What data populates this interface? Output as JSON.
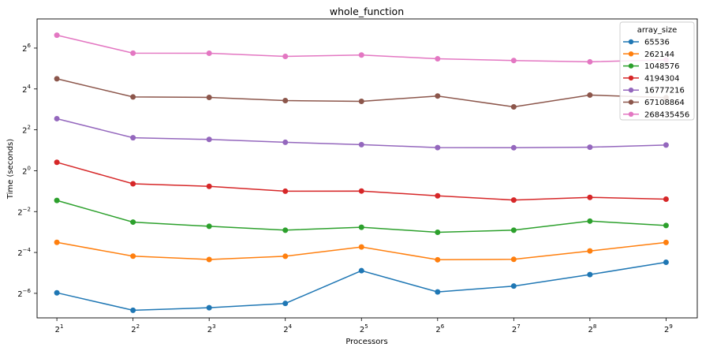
{
  "chart_data": {
    "type": "line",
    "title": "whole_function",
    "xlabel": "Processors",
    "ylabel": "Time (seconds)",
    "x_scale": "log2",
    "y_scale": "log2",
    "x": [
      2,
      4,
      8,
      16,
      32,
      64,
      128,
      256,
      512
    ],
    "x_tick_labels": [
      {
        "base": "2",
        "exp": "1"
      },
      {
        "base": "2",
        "exp": "2"
      },
      {
        "base": "2",
        "exp": "3"
      },
      {
        "base": "2",
        "exp": "4"
      },
      {
        "base": "2",
        "exp": "5"
      },
      {
        "base": "2",
        "exp": "6"
      },
      {
        "base": "2",
        "exp": "7"
      },
      {
        "base": "2",
        "exp": "8"
      },
      {
        "base": "2",
        "exp": "9"
      }
    ],
    "y_ticks": [
      {
        "value": 0.015625,
        "base": "2",
        "exp": "−6"
      },
      {
        "value": 0.0625,
        "base": "2",
        "exp": "−4"
      },
      {
        "value": 0.25,
        "base": "2",
        "exp": "−2"
      },
      {
        "value": 1,
        "base": "2",
        "exp": "0"
      },
      {
        "value": 4,
        "base": "2",
        "exp": "2"
      },
      {
        "value": 16,
        "base": "2",
        "exp": "4"
      },
      {
        "value": 64,
        "base": "2",
        "exp": "6"
      }
    ],
    "ylim": [
      0.0068,
      172
    ],
    "legend_title": "array_size",
    "legend_position": "top-right",
    "series": [
      {
        "name": "65536",
        "color": "#1f77b4",
        "values": [
          0.0159,
          0.0088,
          0.0096,
          0.0111,
          0.0337,
          0.0164,
          0.02,
          0.0295,
          0.0448
        ]
      },
      {
        "name": "262144",
        "color": "#ff7f0e",
        "values": [
          0.088,
          0.0551,
          0.0492,
          0.0549,
          0.0753,
          0.0488,
          0.0495,
          0.0658,
          0.0877
        ]
      },
      {
        "name": "1048576",
        "color": "#2ca02c",
        "values": [
          0.365,
          0.175,
          0.152,
          0.133,
          0.147,
          0.124,
          0.133,
          0.181,
          0.156
        ]
      },
      {
        "name": "4194304",
        "color": "#d62728",
        "values": [
          1.33,
          0.642,
          0.589,
          0.499,
          0.502,
          0.427,
          0.37,
          0.405,
          0.381
        ]
      },
      {
        "name": "16777216",
        "color": "#9467bd",
        "values": [
          5.84,
          3.06,
          2.89,
          2.62,
          2.42,
          2.19,
          2.18,
          2.22,
          2.39
        ]
      },
      {
        "name": "67108864",
        "color": "#8c564b",
        "values": [
          22.6,
          12.2,
          12.0,
          10.8,
          10.5,
          12.6,
          8.71,
          13.0,
          11.9
        ]
      },
      {
        "name": "268435456",
        "color": "#e377c2",
        "values": [
          99.0,
          53.9,
          53.7,
          48.3,
          50.6,
          44.5,
          42.0,
          40.1,
          42.9
        ]
      }
    ],
    "grid": false
  }
}
